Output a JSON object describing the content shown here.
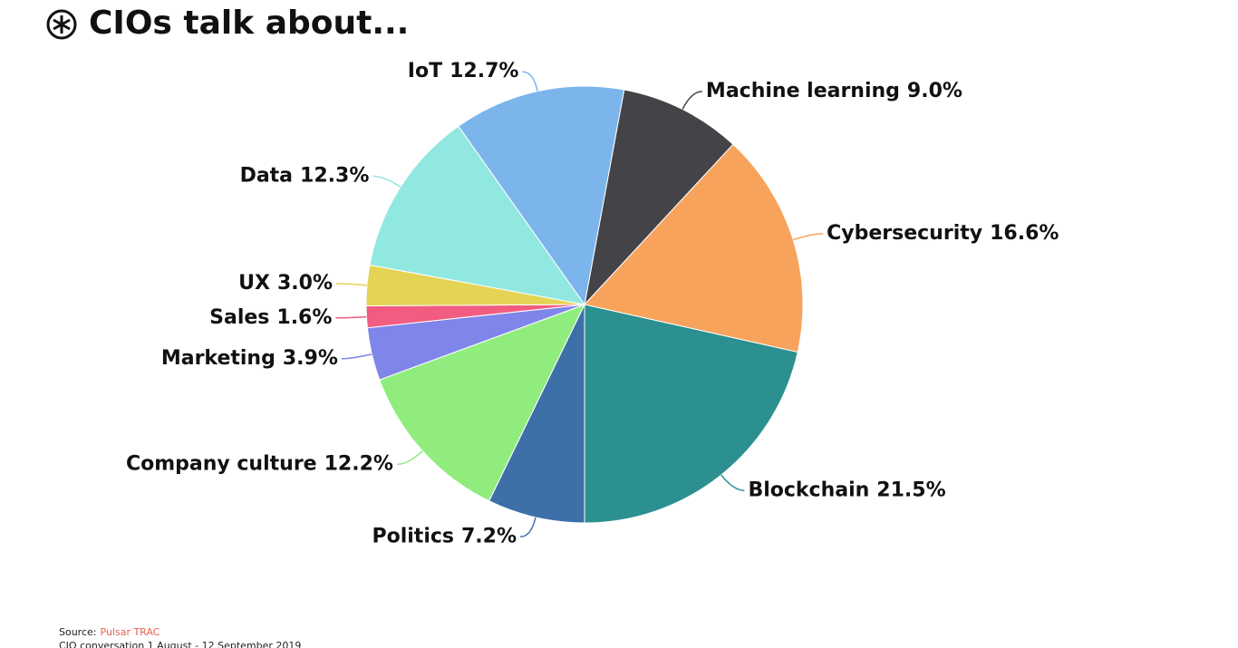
{
  "chart_data": {
    "type": "pie",
    "title": "CIOs talk about...",
    "categories": [
      "Machine learning",
      "Cybersecurity",
      "Blockchain",
      "Politics",
      "Company culture",
      "Marketing",
      "Sales",
      "UX",
      "Data",
      "IoT"
    ],
    "values": [
      9.0,
      16.6,
      21.5,
      7.2,
      12.2,
      3.9,
      1.6,
      3.0,
      12.3,
      12.7
    ],
    "value_labels": [
      "9.0%",
      "16.6%",
      "21.5%",
      "7.2%",
      "12.2%",
      "3.9%",
      "1.6%",
      "3.0%",
      "12.3%",
      "12.7%"
    ],
    "colors": [
      "#434348",
      "#f7a35c",
      "#2b908f",
      "#3d6fa8",
      "#90ed7d",
      "#8085e9",
      "#f15c80",
      "#e4d354",
      "#91e8e1",
      "#7cb5ec"
    ],
    "source_label": "Source:",
    "source": "Pulsar TRAC",
    "note": "CIO conversation 1 August - 12 September 2019"
  }
}
